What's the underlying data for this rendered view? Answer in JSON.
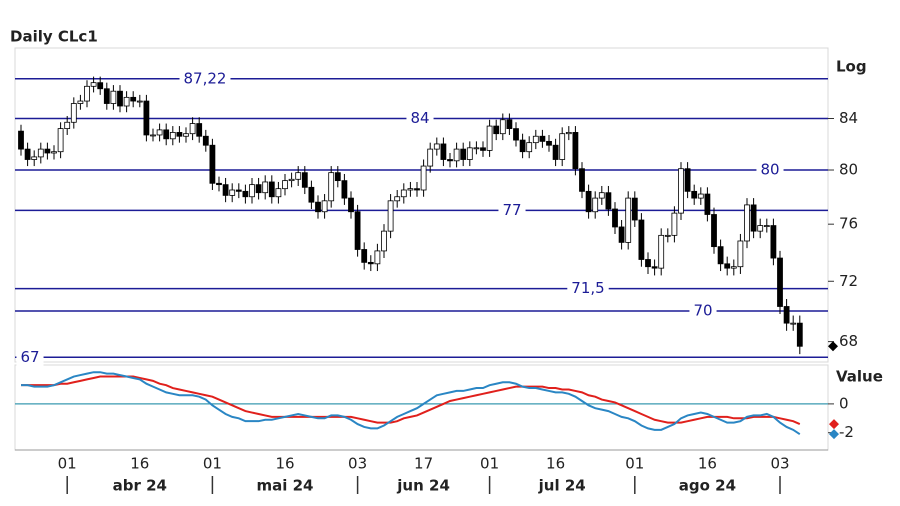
{
  "chart_data": [
    {
      "type": "candlestick",
      "title": "Daily CLc1",
      "scale_label": "Log",
      "log": true,
      "ylim": [
        66.7,
        89.8
      ],
      "yticks": [
        68,
        72,
        76,
        80,
        84
      ],
      "categories": [
        null,
        null,
        null,
        null,
        null,
        null,
        null,
        "01",
        null,
        null,
        null,
        null,
        null,
        null,
        null,
        null,
        null,
        null,
        "16",
        null,
        null,
        null,
        null,
        null,
        null,
        null,
        null,
        null,
        null,
        "01",
        null,
        null,
        null,
        null,
        null,
        null,
        null,
        null,
        null,
        null,
        "16",
        null,
        null,
        null,
        null,
        null,
        null,
        null,
        null,
        null,
        null,
        "03",
        null,
        null,
        null,
        null,
        null,
        null,
        null,
        null,
        null,
        "17",
        null,
        null,
        null,
        null,
        null,
        null,
        null,
        null,
        null,
        "01",
        null,
        null,
        null,
        null,
        null,
        null,
        null,
        null,
        null,
        "16",
        null,
        null,
        null,
        null,
        null,
        null,
        null,
        null,
        null,
        null,
        null,
        "01",
        null,
        null,
        null,
        null,
        null,
        null,
        null,
        null,
        null,
        null,
        "16",
        null,
        null,
        null,
        null,
        null,
        null,
        null,
        null,
        null,
        null,
        "03",
        null,
        null,
        null
      ],
      "months": [
        {
          "label": "abr 24",
          "start": 7,
          "end": 29
        },
        {
          "label": "mai 24",
          "start": 29,
          "end": 51
        },
        {
          "label": "jun 24",
          "start": 51,
          "end": 71
        },
        {
          "label": "jul 24",
          "start": 71,
          "end": 93
        },
        {
          "label": "ago 24",
          "start": 93,
          "end": 115
        }
      ],
      "month_breaks": [
        7,
        29,
        51,
        71,
        93,
        115
      ],
      "levels": [
        {
          "value": 87.22,
          "label": "87,22"
        },
        {
          "value": 84,
          "label": "84"
        },
        {
          "value": 80,
          "label": "80"
        },
        {
          "value": 77,
          "label": "77"
        },
        {
          "value": 71.5,
          "label": "71,5"
        },
        {
          "value": 70,
          "label": "70"
        },
        {
          "value": 67,
          "label": "67"
        }
      ],
      "level_color": "#1c1c96",
      "up_color": "#ffffff",
      "down_color": "#000000",
      "open": [
        83.0,
        81.6,
        80.8,
        81.0,
        81.6,
        81.3,
        81.4,
        83.2,
        83.7,
        85.2,
        85.4,
        86.6,
        86.9,
        86.4,
        85.2,
        86.2,
        85.0,
        85.7,
        85.4,
        85.4,
        82.7,
        82.7,
        83.1,
        82.4,
        82.9,
        82.6,
        82.8,
        83.6,
        82.6,
        81.9,
        79.0,
        78.9,
        78.1,
        78.5,
        78.4,
        78.0,
        78.9,
        78.3,
        79.1,
        78.0,
        78.6,
        79.2,
        79.3,
        79.8,
        78.7,
        77.6,
        76.9,
        77.7,
        79.8,
        79.2,
        77.9,
        76.9,
        74.2,
        73.3,
        73.2,
        74.1,
        75.5,
        77.7,
        78.0,
        78.5,
        78.6,
        78.5,
        80.3,
        81.6,
        82.0,
        80.8,
        80.7,
        81.6,
        80.8,
        81.7,
        81.7,
        81.5,
        83.4,
        82.8,
        83.9,
        83.2,
        82.3,
        81.4,
        82.1,
        82.6,
        82.2,
        81.9,
        80.8,
        82.8,
        82.9,
        80.1,
        78.4,
        76.9,
        77.9,
        78.3,
        77.1,
        75.8,
        74.7,
        77.9,
        76.3,
        73.5,
        73.0,
        72.9,
        75.2,
        75.2,
        76.8,
        80.1,
        78.4,
        77.9,
        78.2,
        76.7,
        74.4,
        73.2,
        72.9,
        73.0,
        74.8,
        77.4,
        75.5,
        75.9,
        75.9,
        73.6,
        70.3,
        69.2,
        69.2
      ],
      "high": [
        83.5,
        82.1,
        81.5,
        82.1,
        82.1,
        81.9,
        83.7,
        84.2,
        85.7,
        85.9,
        87.1,
        87.4,
        87.4,
        86.9,
        86.7,
        86.7,
        86.2,
        86.2,
        85.9,
        85.9,
        83.2,
        83.6,
        83.6,
        83.4,
        83.4,
        83.3,
        84.1,
        84.1,
        83.1,
        82.4,
        79.5,
        79.4,
        79.0,
        79.0,
        78.9,
        79.4,
        79.4,
        79.6,
        79.6,
        79.1,
        79.7,
        79.8,
        80.3,
        80.3,
        79.2,
        78.1,
        78.2,
        80.3,
        80.3,
        79.7,
        78.4,
        77.4,
        74.7,
        73.8,
        74.6,
        76.0,
        78.2,
        78.5,
        79.0,
        79.1,
        79.1,
        80.8,
        82.1,
        82.5,
        82.5,
        81.3,
        82.1,
        82.1,
        82.2,
        82.2,
        82.2,
        83.9,
        83.9,
        84.4,
        84.4,
        83.7,
        82.8,
        82.6,
        83.1,
        83.1,
        82.7,
        82.4,
        83.3,
        83.4,
        83.4,
        80.6,
        78.9,
        78.4,
        78.8,
        78.8,
        77.6,
        76.3,
        78.4,
        78.4,
        76.8,
        74.0,
        73.5,
        75.7,
        75.7,
        77.3,
        80.6,
        80.6,
        78.9,
        78.7,
        78.7,
        77.2,
        74.9,
        73.7,
        73.5,
        75.3,
        77.9,
        77.9,
        76.4,
        76.4,
        76.4,
        74.1,
        70.8,
        69.7,
        69.7
      ],
      "low": [
        81.1,
        80.3,
        80.3,
        80.5,
        80.8,
        80.8,
        80.9,
        82.7,
        83.2,
        84.7,
        84.9,
        86.1,
        85.9,
        84.7,
        84.7,
        84.5,
        84.5,
        84.9,
        84.9,
        82.2,
        82.2,
        82.2,
        81.9,
        81.9,
        82.1,
        82.1,
        82.3,
        82.1,
        81.4,
        78.5,
        78.4,
        77.6,
        77.6,
        77.9,
        77.5,
        77.5,
        77.8,
        77.8,
        77.5,
        77.5,
        78.1,
        78.7,
        78.8,
        78.2,
        77.1,
        76.4,
        76.4,
        77.2,
        78.7,
        77.4,
        76.4,
        73.7,
        72.8,
        72.7,
        72.7,
        73.6,
        75.0,
        77.2,
        77.5,
        78.0,
        78.0,
        78.0,
        79.8,
        81.1,
        80.3,
        80.2,
        80.2,
        80.3,
        80.3,
        81.2,
        81.0,
        81.0,
        82.3,
        82.3,
        82.7,
        81.8,
        80.9,
        80.9,
        81.6,
        81.7,
        81.4,
        80.3,
        80.3,
        82.3,
        79.6,
        77.9,
        76.4,
        76.4,
        77.4,
        76.6,
        75.3,
        74.2,
        74.2,
        75.8,
        73.0,
        72.5,
        72.4,
        72.4,
        74.7,
        74.7,
        76.3,
        77.9,
        77.4,
        77.4,
        76.2,
        73.9,
        72.7,
        72.4,
        72.4,
        72.5,
        74.3,
        75.0,
        75.0,
        75.4,
        73.1,
        69.8,
        68.7,
        68.7,
        67.2
      ],
      "close": [
        81.6,
        80.8,
        81.0,
        81.6,
        81.3,
        81.4,
        83.2,
        83.7,
        85.2,
        85.4,
        86.6,
        86.9,
        86.4,
        85.2,
        86.2,
        85.0,
        85.7,
        85.4,
        85.4,
        82.7,
        82.7,
        83.1,
        82.4,
        82.9,
        82.6,
        82.8,
        83.6,
        82.6,
        81.9,
        79.0,
        78.9,
        78.1,
        78.5,
        78.4,
        78.0,
        78.9,
        78.3,
        79.1,
        78.0,
        78.6,
        79.2,
        79.3,
        79.8,
        78.7,
        77.6,
        76.9,
        77.7,
        79.8,
        79.2,
        77.9,
        76.9,
        74.2,
        73.3,
        73.2,
        74.1,
        75.5,
        77.7,
        78.0,
        78.5,
        78.6,
        78.5,
        80.3,
        81.6,
        82.0,
        80.8,
        80.7,
        81.6,
        80.8,
        81.7,
        81.7,
        81.5,
        83.4,
        82.8,
        83.9,
        83.2,
        82.3,
        81.4,
        82.1,
        82.6,
        82.2,
        81.9,
        80.8,
        82.8,
        82.9,
        80.1,
        78.4,
        76.9,
        77.9,
        78.3,
        77.1,
        75.8,
        74.7,
        77.9,
        76.3,
        73.5,
        73.0,
        72.9,
        75.2,
        75.2,
        76.8,
        80.1,
        78.4,
        77.9,
        78.2,
        76.7,
        74.4,
        73.2,
        72.9,
        73.0,
        74.8,
        77.4,
        75.5,
        75.9,
        75.9,
        73.6,
        70.3,
        69.2,
        69.2,
        67.7
      ]
    },
    {
      "type": "line",
      "scale_label": "Value",
      "ylim": [
        -3.2,
        2.7
      ],
      "yticks": [
        0,
        -2
      ],
      "zero_color": "#3a9ab0",
      "series": [
        {
          "color": "#2a86c4",
          "values": [
            1.3,
            1.3,
            1.2,
            1.2,
            1.2,
            1.3,
            1.5,
            1.7,
            1.9,
            2.0,
            2.1,
            2.2,
            2.2,
            2.1,
            2.1,
            2.0,
            1.9,
            1.8,
            1.7,
            1.4,
            1.2,
            1.0,
            0.8,
            0.7,
            0.6,
            0.6,
            0.6,
            0.5,
            0.3,
            -0.1,
            -0.4,
            -0.7,
            -0.9,
            -1.0,
            -1.2,
            -1.2,
            -1.2,
            -1.1,
            -1.1,
            -1.0,
            -0.9,
            -0.8,
            -0.7,
            -0.8,
            -0.9,
            -1.0,
            -1.0,
            -0.8,
            -0.8,
            -0.9,
            -1.1,
            -1.4,
            -1.6,
            -1.7,
            -1.7,
            -1.5,
            -1.2,
            -0.9,
            -0.7,
            -0.5,
            -0.3,
            0.0,
            0.3,
            0.6,
            0.7,
            0.8,
            0.9,
            0.9,
            1.0,
            1.1,
            1.1,
            1.3,
            1.4,
            1.5,
            1.5,
            1.4,
            1.2,
            1.1,
            1.1,
            1.0,
            0.9,
            0.8,
            0.8,
            0.7,
            0.5,
            0.2,
            -0.1,
            -0.3,
            -0.4,
            -0.5,
            -0.7,
            -0.9,
            -1.0,
            -1.2,
            -1.5,
            -1.7,
            -1.8,
            -1.8,
            -1.6,
            -1.4,
            -1.0,
            -0.8,
            -0.7,
            -0.6,
            -0.7,
            -0.9,
            -1.1,
            -1.3,
            -1.3,
            -1.2,
            -0.9,
            -0.8,
            -0.8,
            -0.7,
            -0.9,
            -1.3,
            -1.6,
            -1.8,
            -2.1
          ]
        },
        {
          "color": "#e0201c",
          "values": [
            1.3,
            1.3,
            1.3,
            1.3,
            1.3,
            1.3,
            1.4,
            1.4,
            1.5,
            1.6,
            1.7,
            1.8,
            1.9,
            1.9,
            1.9,
            1.9,
            1.9,
            1.9,
            1.8,
            1.7,
            1.6,
            1.4,
            1.3,
            1.1,
            1.0,
            0.9,
            0.8,
            0.7,
            0.6,
            0.5,
            0.3,
            0.1,
            -0.1,
            -0.3,
            -0.5,
            -0.6,
            -0.7,
            -0.8,
            -0.9,
            -0.9,
            -0.9,
            -0.9,
            -0.9,
            -0.9,
            -0.9,
            -0.9,
            -0.9,
            -0.9,
            -0.9,
            -0.9,
            -0.9,
            -1.0,
            -1.1,
            -1.2,
            -1.3,
            -1.3,
            -1.3,
            -1.2,
            -1.0,
            -0.9,
            -0.8,
            -0.6,
            -0.4,
            -0.2,
            0.0,
            0.2,
            0.3,
            0.4,
            0.5,
            0.6,
            0.7,
            0.8,
            0.9,
            1.0,
            1.1,
            1.2,
            1.2,
            1.2,
            1.2,
            1.2,
            1.1,
            1.1,
            1.0,
            1.0,
            0.9,
            0.8,
            0.6,
            0.5,
            0.3,
            0.2,
            0.1,
            -0.1,
            -0.3,
            -0.5,
            -0.7,
            -0.9,
            -1.1,
            -1.2,
            -1.3,
            -1.3,
            -1.3,
            -1.2,
            -1.1,
            -1.0,
            -0.9,
            -0.9,
            -0.9,
            -0.9,
            -1.0,
            -1.0,
            -1.0,
            -0.9,
            -0.9,
            -0.9,
            -0.9,
            -1.0,
            -1.1,
            -1.2,
            -1.4
          ]
        }
      ]
    }
  ]
}
